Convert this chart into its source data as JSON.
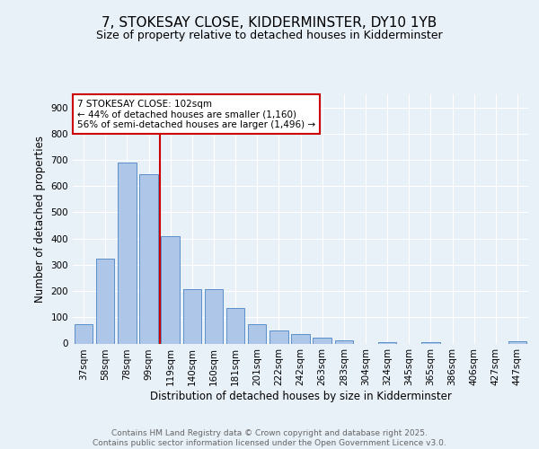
{
  "title1": "7, STOKESAY CLOSE, KIDDERMINSTER, DY10 1YB",
  "title2": "Size of property relative to detached houses in Kidderminster",
  "xlabel": "Distribution of detached houses by size in Kidderminster",
  "ylabel": "Number of detached properties",
  "bar_labels": [
    "37sqm",
    "58sqm",
    "78sqm",
    "99sqm",
    "119sqm",
    "140sqm",
    "160sqm",
    "181sqm",
    "201sqm",
    "222sqm",
    "242sqm",
    "263sqm",
    "283sqm",
    "304sqm",
    "324sqm",
    "345sqm",
    "365sqm",
    "386sqm",
    "406sqm",
    "427sqm",
    "447sqm"
  ],
  "bar_values": [
    75,
    325,
    690,
    645,
    410,
    208,
    208,
    135,
    72,
    48,
    35,
    22,
    12,
    0,
    5,
    0,
    5,
    0,
    0,
    0,
    8
  ],
  "bar_color": "#aec6e8",
  "bar_edge_color": "#5b8fc9",
  "vline_color": "#cc0000",
  "annotation_text": "7 STOKESAY CLOSE: 102sqm\n← 44% of detached houses are smaller (1,160)\n56% of semi-detached houses are larger (1,496) →",
  "annotation_box_color": "#cc0000",
  "annotation_bg": "#ffffff",
  "ylim": [
    0,
    950
  ],
  "yticks": [
    0,
    100,
    200,
    300,
    400,
    500,
    600,
    700,
    800,
    900
  ],
  "bg_color": "#e8f0f8",
  "plot_bg": "#e8f0f8",
  "footer_text": "Contains HM Land Registry data © Crown copyright and database right 2025.\nContains public sector information licensed under the Open Government Licence v3.0.",
  "grid_color": "#ffffff",
  "title_fontsize": 11,
  "subtitle_fontsize": 9,
  "axis_label_fontsize": 8.5,
  "tick_fontsize": 7.5
}
